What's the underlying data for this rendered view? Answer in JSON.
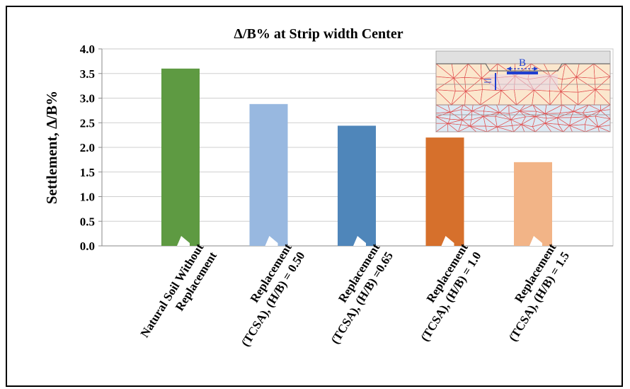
{
  "chart_data": {
    "type": "bar",
    "title": "Δ/B% at Strip width Center",
    "ylabel": "Settlement, Δ/B%",
    "xlabel": "",
    "ylim": [
      0,
      4.0
    ],
    "yticks": [
      "0.0",
      "0.5",
      "1.0",
      "1.5",
      "2.0",
      "2.5",
      "3.0",
      "3.5",
      "4.0"
    ],
    "grid": true,
    "categories": [
      [
        "Natural Soil Without",
        "Replacement"
      ],
      [
        "Replacement",
        "(TCSA), (H/B) = 0.50"
      ],
      [
        "Replacement",
        "(TCSA), (H/B) =0.65"
      ],
      [
        "Replacement",
        "(TCSA), (H/B) = 1.0"
      ],
      [
        "Replacement",
        "(TCSA), (H/B) = 1.5"
      ]
    ],
    "values": [
      3.6,
      2.88,
      2.44,
      2.2,
      1.7
    ],
    "colors": [
      "#5e9a42",
      "#98b8e0",
      "#4f86ba",
      "#d6702c",
      "#f2b487"
    ]
  },
  "inset": {
    "label": "B",
    "colors": {
      "mesh_top": "#fbe7cd",
      "mesh_bottom": "#dce8f2",
      "mesh_line": "#e05050",
      "dimension": "#1f3fd0"
    }
  }
}
